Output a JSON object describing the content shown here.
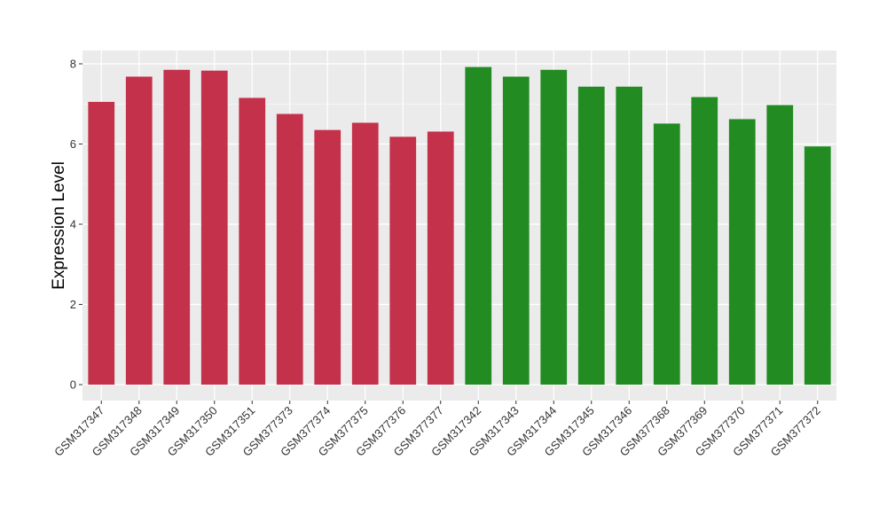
{
  "chart_data": {
    "type": "bar",
    "title": "",
    "xlabel": "",
    "ylabel": "Expression Level",
    "ylim": [
      0,
      8
    ],
    "yticks": [
      0,
      2,
      4,
      6,
      8
    ],
    "grid": true,
    "legend": "none",
    "colors": {
      "group_a": "#C4314B",
      "group_b": "#228B22",
      "panel": "#EBEBEB",
      "gridline": "#FFFFFF"
    },
    "categories": [
      "GSM317347",
      "GSM317348",
      "GSM317349",
      "GSM317350",
      "GSM317351",
      "GSM377373",
      "GSM377374",
      "GSM377375",
      "GSM377376",
      "GSM377377",
      "GSM317342",
      "GSM317343",
      "GSM317344",
      "GSM317345",
      "GSM317346",
      "GSM377368",
      "GSM377369",
      "GSM377370",
      "GSM377371",
      "GSM377372"
    ],
    "values": [
      7.05,
      7.68,
      7.85,
      7.83,
      7.15,
      6.75,
      6.35,
      6.53,
      6.18,
      6.31,
      7.92,
      7.68,
      7.85,
      7.43,
      7.43,
      6.51,
      7.17,
      6.62,
      6.97,
      5.94
    ],
    "groups": [
      "group_a",
      "group_a",
      "group_a",
      "group_a",
      "group_a",
      "group_a",
      "group_a",
      "group_a",
      "group_a",
      "group_a",
      "group_b",
      "group_b",
      "group_b",
      "group_b",
      "group_b",
      "group_b",
      "group_b",
      "group_b",
      "group_b",
      "group_b"
    ]
  }
}
